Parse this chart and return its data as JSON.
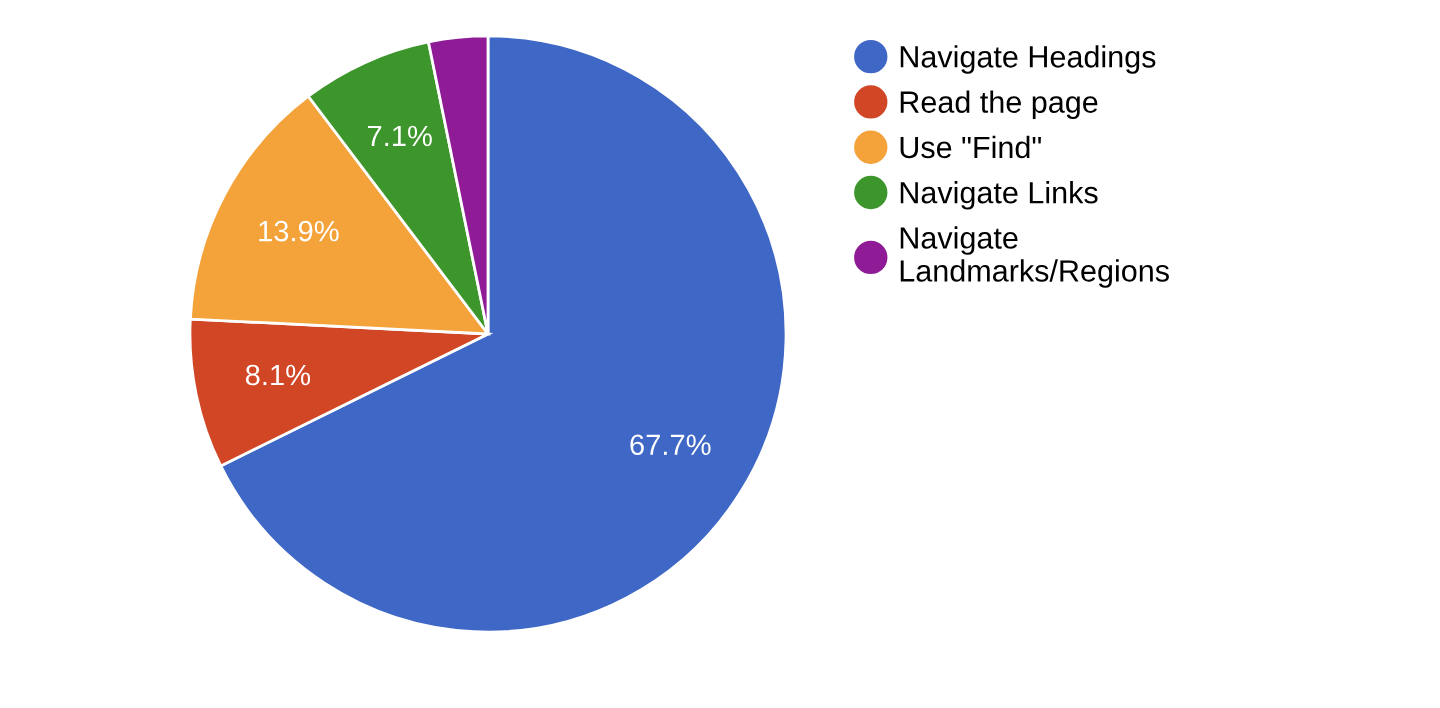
{
  "chart_data": {
    "type": "pie",
    "categories": [
      "Navigate Headings",
      "Read the page",
      "Use \"Find\"",
      "Navigate Links",
      "Navigate Landmarks/Regions"
    ],
    "values": [
      67.7,
      8.1,
      13.9,
      7.1,
      3.2
    ],
    "colors": [
      "#3f67c6",
      "#d14726",
      "#f4a23a",
      "#3d962c",
      "#8f1b97"
    ],
    "value_labels": [
      "67.7%",
      "8.1%",
      "13.9%",
      "7.1%",
      null
    ],
    "legend": "right"
  }
}
